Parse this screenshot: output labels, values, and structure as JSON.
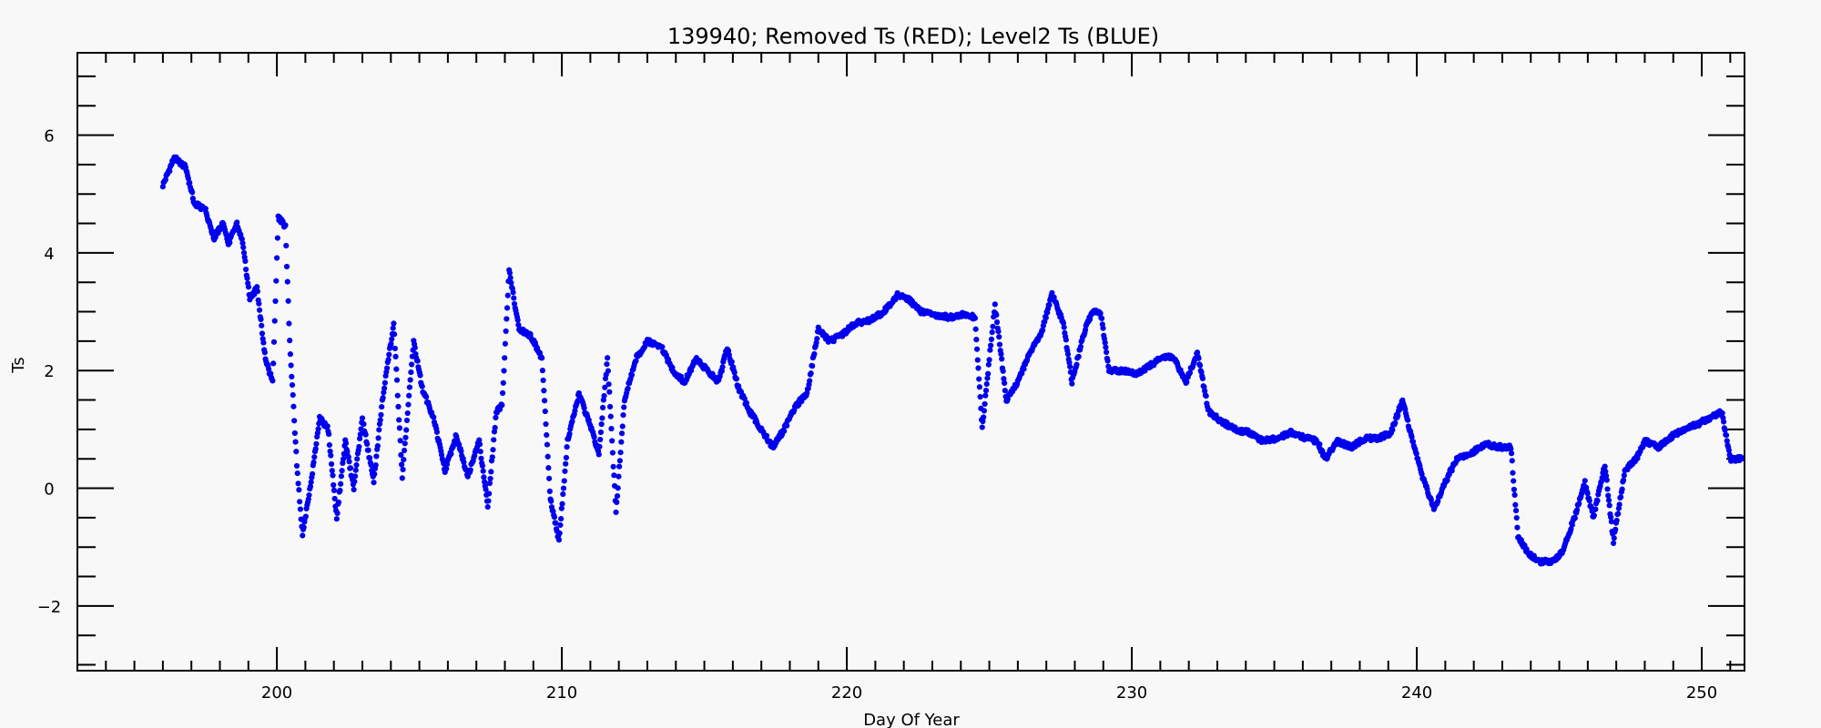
{
  "chart_data": {
    "type": "scatter",
    "title": "139940; Removed Ts (RED); Level2 Ts (BLUE)",
    "xlabel": "Day Of Year",
    "ylabel": "Ts",
    "xlim": [
      193,
      251.5
    ],
    "ylim": [
      -3.1,
      7.4
    ],
    "x_ticks": [
      200,
      210,
      220,
      230,
      240,
      250
    ],
    "y_ticks": [
      -2,
      0,
      2,
      4,
      6
    ],
    "x_minor_step": 1,
    "y_minor_step": 0.5,
    "grid": false,
    "colors": {
      "marker": "#0000ee",
      "axis": "#000000",
      "background": "#f8f8f8"
    },
    "series": [
      {
        "color": "#0000ee",
        "anchors": [
          [
            196.0,
            5.15
          ],
          [
            196.4,
            5.62
          ],
          [
            196.8,
            5.45
          ],
          [
            197.1,
            4.85
          ],
          [
            197.5,
            4.72
          ],
          [
            197.8,
            4.25
          ],
          [
            198.1,
            4.5
          ],
          [
            198.3,
            4.15
          ],
          [
            198.6,
            4.5
          ],
          [
            198.8,
            4.2
          ],
          [
            199.05,
            3.2
          ],
          [
            199.3,
            3.4
          ],
          [
            199.6,
            2.2
          ],
          [
            199.85,
            1.8
          ],
          [
            200.05,
            4.6
          ],
          [
            200.3,
            4.45
          ],
          [
            200.45,
            2.5
          ],
          [
            200.7,
            0.4
          ],
          [
            200.9,
            -0.8
          ],
          [
            201.2,
            0.1
          ],
          [
            201.5,
            1.2
          ],
          [
            201.8,
            1.0
          ],
          [
            202.1,
            -0.5
          ],
          [
            202.4,
            0.8
          ],
          [
            202.7,
            0.0
          ],
          [
            203.0,
            1.2
          ],
          [
            203.4,
            0.1
          ],
          [
            203.7,
            1.5
          ],
          [
            204.1,
            2.8
          ],
          [
            204.4,
            0.2
          ],
          [
            204.8,
            2.5
          ],
          [
            205.1,
            1.7
          ],
          [
            205.5,
            1.2
          ],
          [
            205.9,
            0.3
          ],
          [
            206.3,
            0.9
          ],
          [
            206.7,
            0.2
          ],
          [
            207.1,
            0.8
          ],
          [
            207.4,
            -0.3
          ],
          [
            207.7,
            1.3
          ],
          [
            207.9,
            1.4
          ],
          [
            208.15,
            3.7
          ],
          [
            208.5,
            2.7
          ],
          [
            208.9,
            2.6
          ],
          [
            209.3,
            2.2
          ],
          [
            209.6,
            -0.2
          ],
          [
            209.9,
            -0.9
          ],
          [
            210.2,
            0.8
          ],
          [
            210.6,
            1.6
          ],
          [
            210.9,
            1.2
          ],
          [
            211.3,
            0.6
          ],
          [
            211.6,
            2.2
          ],
          [
            211.9,
            -0.4
          ],
          [
            212.2,
            1.5
          ],
          [
            212.6,
            2.2
          ],
          [
            213.0,
            2.5
          ],
          [
            213.5,
            2.4
          ],
          [
            213.9,
            2.0
          ],
          [
            214.3,
            1.8
          ],
          [
            214.7,
            2.2
          ],
          [
            215.1,
            2.0
          ],
          [
            215.5,
            1.8
          ],
          [
            215.8,
            2.4
          ],
          [
            216.2,
            1.7
          ],
          [
            216.6,
            1.3
          ],
          [
            217.0,
            1.0
          ],
          [
            217.4,
            0.7
          ],
          [
            217.8,
            1.0
          ],
          [
            218.2,
            1.4
          ],
          [
            218.6,
            1.6
          ],
          [
            219.0,
            2.7
          ],
          [
            219.4,
            2.5
          ],
          [
            219.8,
            2.6
          ],
          [
            220.3,
            2.8
          ],
          [
            220.8,
            2.85
          ],
          [
            221.3,
            3.0
          ],
          [
            221.8,
            3.3
          ],
          [
            222.2,
            3.2
          ],
          [
            222.6,
            3.0
          ],
          [
            223.1,
            2.95
          ],
          [
            223.6,
            2.9
          ],
          [
            224.1,
            2.95
          ],
          [
            224.5,
            2.9
          ],
          [
            224.75,
            1.0
          ],
          [
            225.0,
            2.2
          ],
          [
            225.2,
            3.1
          ],
          [
            225.6,
            1.5
          ],
          [
            226.0,
            1.8
          ],
          [
            226.4,
            2.3
          ],
          [
            226.8,
            2.6
          ],
          [
            227.2,
            3.3
          ],
          [
            227.6,
            2.8
          ],
          [
            227.9,
            1.8
          ],
          [
            228.3,
            2.6
          ],
          [
            228.6,
            3.0
          ],
          [
            228.9,
            3.0
          ],
          [
            229.2,
            2.0
          ],
          [
            229.7,
            2.0
          ],
          [
            230.2,
            1.95
          ],
          [
            230.7,
            2.1
          ],
          [
            231.1,
            2.25
          ],
          [
            231.5,
            2.2
          ],
          [
            231.9,
            1.8
          ],
          [
            232.3,
            2.3
          ],
          [
            232.7,
            1.3
          ],
          [
            233.1,
            1.15
          ],
          [
            233.6,
            1.0
          ],
          [
            234.1,
            0.95
          ],
          [
            234.6,
            0.8
          ],
          [
            235.1,
            0.85
          ],
          [
            235.6,
            0.95
          ],
          [
            236.1,
            0.85
          ],
          [
            236.5,
            0.8
          ],
          [
            236.8,
            0.5
          ],
          [
            237.2,
            0.8
          ],
          [
            237.7,
            0.7
          ],
          [
            238.2,
            0.85
          ],
          [
            238.7,
            0.85
          ],
          [
            239.1,
            0.95
          ],
          [
            239.5,
            1.5
          ],
          [
            239.8,
            0.9
          ],
          [
            240.2,
            0.2
          ],
          [
            240.6,
            -0.35
          ],
          [
            241.0,
            0.1
          ],
          [
            241.4,
            0.5
          ],
          [
            241.9,
            0.6
          ],
          [
            242.4,
            0.75
          ],
          [
            242.9,
            0.7
          ],
          [
            243.3,
            0.7
          ],
          [
            243.55,
            -0.8
          ],
          [
            243.9,
            -1.1
          ],
          [
            244.3,
            -1.25
          ],
          [
            244.7,
            -1.25
          ],
          [
            245.1,
            -1.1
          ],
          [
            245.6,
            -0.4
          ],
          [
            245.9,
            0.1
          ],
          [
            246.2,
            -0.5
          ],
          [
            246.6,
            0.4
          ],
          [
            246.9,
            -0.9
          ],
          [
            247.3,
            0.3
          ],
          [
            247.7,
            0.5
          ],
          [
            248.0,
            0.8
          ],
          [
            248.5,
            0.7
          ],
          [
            249.0,
            0.9
          ],
          [
            249.4,
            1.0
          ],
          [
            249.9,
            1.1
          ],
          [
            250.3,
            1.2
          ],
          [
            250.7,
            1.3
          ],
          [
            251.0,
            0.5
          ],
          [
            251.4,
            0.5
          ]
        ]
      }
    ]
  }
}
